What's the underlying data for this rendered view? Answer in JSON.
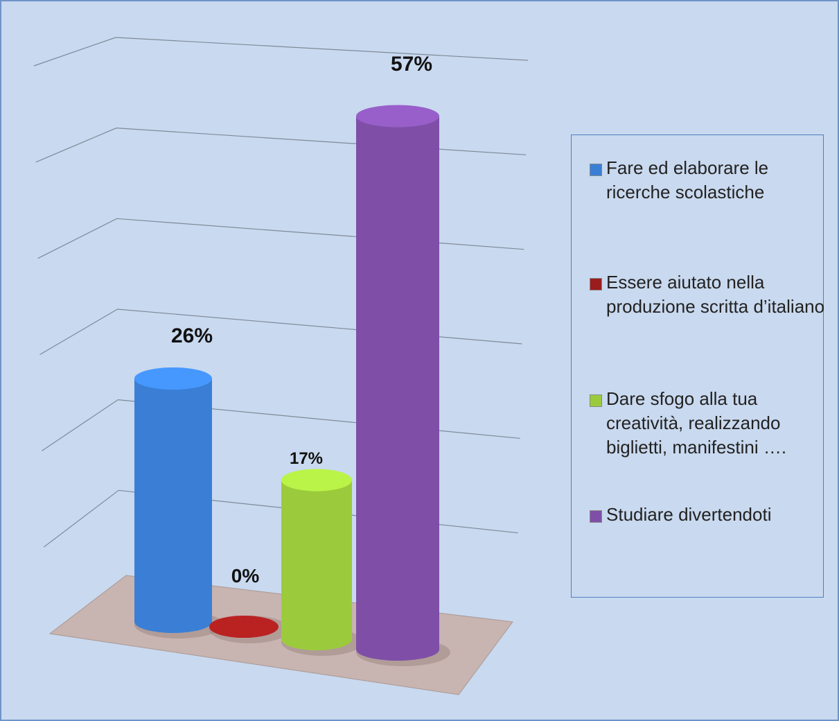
{
  "chart_data": {
    "type": "bar3d",
    "categories": [
      "Fare ed elaborare le ricerche scolastiche",
      "Essere aiutato nella produzione scritta d’italiano",
      "Dare sfogo alla tua creatività, realizzando biglietti, manifestini ….",
      "Studiare divertendoti"
    ],
    "values": [
      26,
      0,
      17,
      57
    ],
    "value_labels": [
      "26%",
      "0%",
      "17%",
      "57%"
    ],
    "colors": [
      "#3a7fd5",
      "#9b1c1c",
      "#9bcb3c",
      "#7f4fa8"
    ],
    "ylim": [
      0,
      60
    ],
    "yticks": [
      0,
      10,
      20,
      30,
      40,
      50,
      60
    ],
    "grid": true,
    "legend": "right"
  }
}
